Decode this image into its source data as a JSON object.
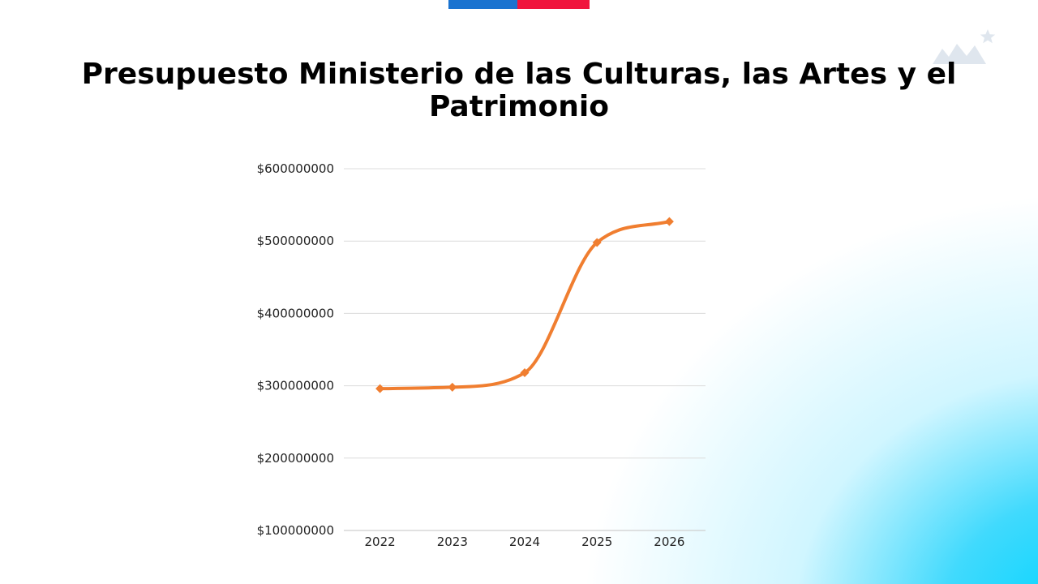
{
  "slide": {
    "title": "Presupuesto Ministerio de las Culturas, las Artes y el Patrimonio",
    "colors": {
      "flag_blue": "#1a73d0",
      "flag_red": "#f0153d",
      "series": "#f07e30",
      "background_accent": "#00d4ff",
      "logo": "#dfe6ee"
    },
    "logo_icon": "mountains-star-icon"
  },
  "chart_data": {
    "type": "line",
    "title": "Presupuesto Ministerio de las Culturas, las Artes y el Patrimonio",
    "xlabel": "",
    "ylabel": "",
    "categories": [
      "2022",
      "2023",
      "2024",
      "2025",
      "2026"
    ],
    "series": [
      {
        "values": [
          296000000,
          298000000,
          318000000,
          498000000,
          527000000
        ],
        "color": "#f07e30",
        "marker": "diamond",
        "smooth": true
      }
    ],
    "ylim": [
      100000000,
      600000000
    ],
    "yticks": [
      100000000,
      200000000,
      300000000,
      400000000,
      500000000,
      600000000
    ],
    "ytick_labels": [
      "$100000000",
      "$200000000",
      "$300000000",
      "$400000000",
      "$500000000",
      "$600000000"
    ],
    "grid": true,
    "legend": "none"
  }
}
